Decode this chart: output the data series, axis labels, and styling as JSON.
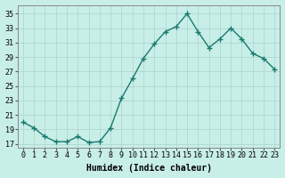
{
  "x": [
    0,
    1,
    2,
    3,
    4,
    5,
    6,
    7,
    8,
    9,
    10,
    11,
    12,
    13,
    14,
    15,
    16,
    17,
    18,
    19,
    20,
    21,
    22,
    23
  ],
  "y": [
    20,
    19.2,
    18,
    17.3,
    17.3,
    18,
    17.2,
    17.3,
    19.2,
    23.3,
    26,
    28.8,
    30.8,
    32.5,
    33.2,
    35,
    32.5,
    30.3,
    31.5,
    33,
    31.5,
    29.5,
    28.8,
    27.3
  ],
  "line_color": "#1a7a6e",
  "marker": "+",
  "marker_size": 4,
  "marker_lw": 1.0,
  "bg_color": "#c8eee8",
  "grid_color": "#b0d8d0",
  "xlabel": "Humidex (Indice chaleur)",
  "xlabel_fontsize": 7,
  "ylabel_ticks": [
    17,
    19,
    21,
    23,
    25,
    27,
    29,
    31,
    33,
    35
  ],
  "xlim": [
    -0.5,
    23.5
  ],
  "ylim": [
    16.5,
    36.2
  ],
  "xtick_labels": [
    "0",
    "1",
    "2",
    "3",
    "4",
    "5",
    "6",
    "7",
    "8",
    "9",
    "10",
    "11",
    "12",
    "13",
    "14",
    "15",
    "16",
    "17",
    "18",
    "19",
    "20",
    "21",
    "22",
    "23"
  ],
  "linewidth": 1.0,
  "tick_fontsize": 6,
  "spine_color": "#888888"
}
